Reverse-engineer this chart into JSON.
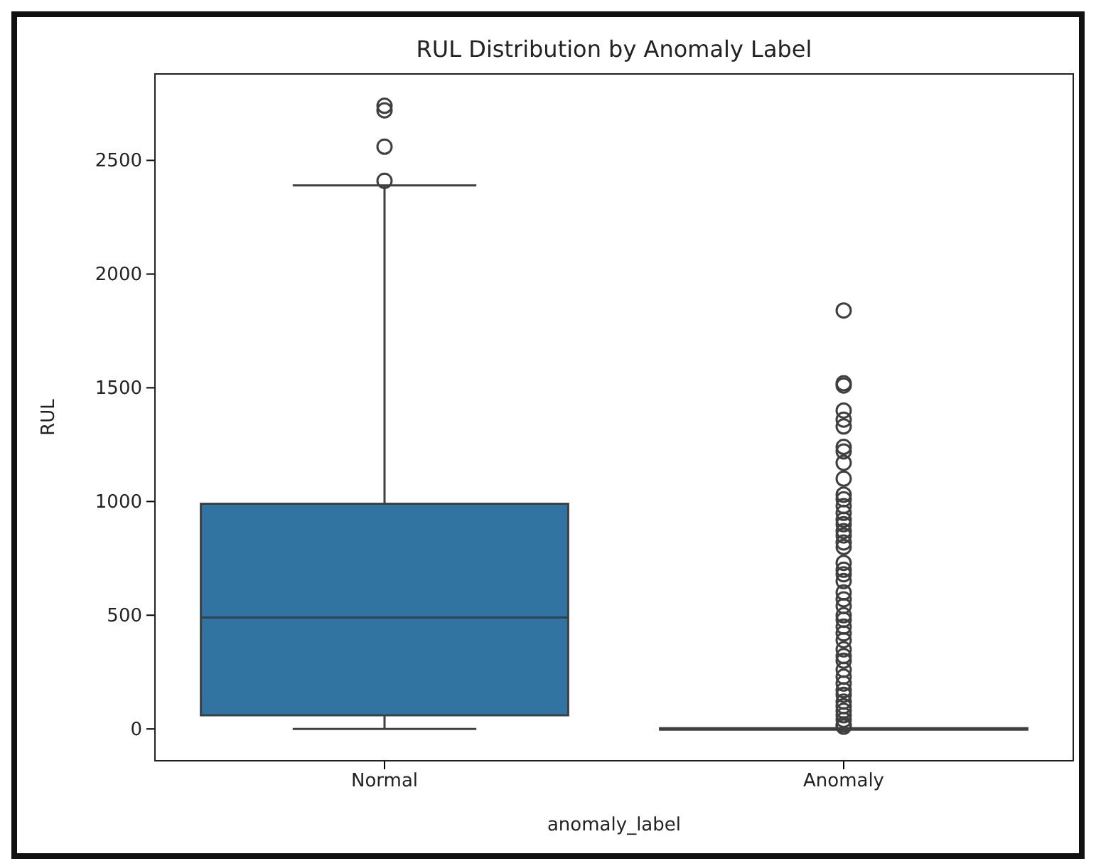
{
  "chart_data": {
    "type": "box",
    "title": "RUL Distribution by Anomaly Label",
    "xlabel": "anomaly_label",
    "ylabel": "RUL",
    "categories": [
      "Normal",
      "Anomaly"
    ],
    "series": [
      {
        "color": "#3274a1",
        "boxes": [
          {
            "low": 0,
            "q1": 60,
            "median": 490,
            "q3": 990,
            "high": 2390,
            "outliers": [
              2410,
              2560,
              2720,
              2740
            ]
          },
          {
            "low": 0,
            "q1": 0,
            "median": 0,
            "q3": 0,
            "high": 0,
            "outliers": [
              1840,
              1520,
              1510,
              1400,
              1360,
              1330,
              1240,
              1220,
              1170,
              1100,
              1030,
              1010,
              980,
              950,
              920,
              900,
              870,
              850,
              820,
              800,
              730,
              700,
              680,
              650,
              600,
              570,
              540,
              500,
              480,
              450,
              420,
              390,
              350,
              320,
              300,
              260,
              230,
              200,
              170,
              150,
              120,
              100,
              80,
              60,
              40,
              20,
              10
            ]
          }
        ]
      }
    ],
    "ylim": [
      -140,
      2880
    ],
    "yticks": [
      0,
      500,
      1000,
      1500,
      2000,
      2500
    ]
  }
}
